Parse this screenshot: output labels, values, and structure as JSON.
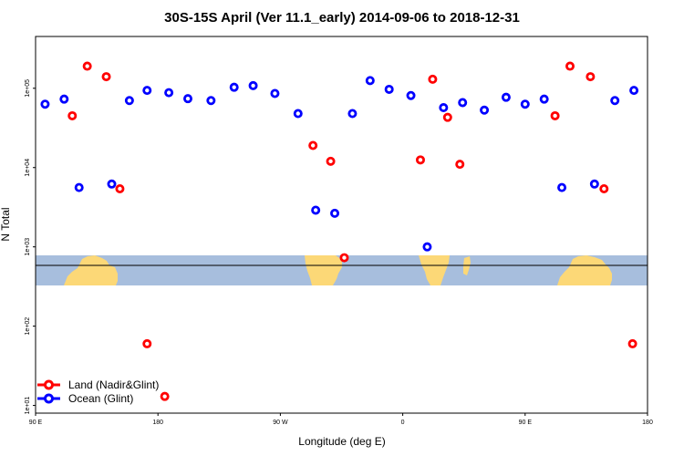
{
  "chart_data": {
    "type": "scatter",
    "title": "30S-15S April (Ver 11.1_early)   2014-09-06 to 2018-12-31",
    "xlabel": "Longitude (deg E)",
    "ylabel": "N Total",
    "xscale": "linear",
    "yscale": "log",
    "xlim": [
      90,
      540
    ],
    "ylim": [
      8,
      450000
    ],
    "x_ticks": [
      {
        "value": 90,
        "label": "90 E"
      },
      {
        "value": 180,
        "label": "180"
      },
      {
        "value": 270,
        "label": "90 W"
      },
      {
        "value": 360,
        "label": "0"
      },
      {
        "value": 450,
        "label": "90 E"
      },
      {
        "value": 540,
        "label": "180"
      }
    ],
    "y_ticks": [
      {
        "value": 10,
        "label": "1e+01"
      },
      {
        "value": 100,
        "label": "1e+02"
      },
      {
        "value": 1000,
        "label": "1e+03"
      },
      {
        "value": 10000,
        "label": "1e+04"
      },
      {
        "value": 100000,
        "label": "1e+05"
      }
    ],
    "grid": false,
    "legend_position": "bottom-left",
    "series": [
      {
        "name": "Land (Nadir&Glint)",
        "color": "#ff0000",
        "points": [
          {
            "x": 117,
            "y": 45000
          },
          {
            "x": 128,
            "y": 190000
          },
          {
            "x": 142,
            "y": 140000
          },
          {
            "x": 152,
            "y": 5400
          },
          {
            "x": 172,
            "y": 60
          },
          {
            "x": 185,
            "y": 13
          },
          {
            "x": 294,
            "y": 19000
          },
          {
            "x": 307,
            "y": 12000
          },
          {
            "x": 317,
            "y": 730
          },
          {
            "x": 373,
            "y": 12500
          },
          {
            "x": 382,
            "y": 130000
          },
          {
            "x": 393,
            "y": 43000
          },
          {
            "x": 402,
            "y": 11000
          },
          {
            "x": 472,
            "y": 45000
          },
          {
            "x": 483,
            "y": 190000
          },
          {
            "x": 498,
            "y": 140000
          },
          {
            "x": 508,
            "y": 5400
          },
          {
            "x": 529,
            "y": 60
          }
        ]
      },
      {
        "name": "Ocean (Glint)",
        "color": "#0000ff",
        "points": [
          {
            "x": 97,
            "y": 63000
          },
          {
            "x": 111,
            "y": 73000
          },
          {
            "x": 122,
            "y": 5600
          },
          {
            "x": 146,
            "y": 6200
          },
          {
            "x": 159,
            "y": 70000
          },
          {
            "x": 172,
            "y": 94000
          },
          {
            "x": 188,
            "y": 88000
          },
          {
            "x": 202,
            "y": 74000
          },
          {
            "x": 219,
            "y": 70000
          },
          {
            "x": 236,
            "y": 103000
          },
          {
            "x": 250,
            "y": 108000
          },
          {
            "x": 266,
            "y": 86000
          },
          {
            "x": 283,
            "y": 48000
          },
          {
            "x": 296,
            "y": 2900
          },
          {
            "x": 310,
            "y": 2650
          },
          {
            "x": 323,
            "y": 48000
          },
          {
            "x": 336,
            "y": 125000
          },
          {
            "x": 350,
            "y": 97000
          },
          {
            "x": 366,
            "y": 81000
          },
          {
            "x": 378,
            "y": 1000
          },
          {
            "x": 390,
            "y": 57000
          },
          {
            "x": 404,
            "y": 66000
          },
          {
            "x": 420,
            "y": 53000
          },
          {
            "x": 436,
            "y": 77000
          },
          {
            "x": 450,
            "y": 63000
          },
          {
            "x": 464,
            "y": 73000
          },
          {
            "x": 477,
            "y": 5600
          },
          {
            "x": 501,
            "y": 6200
          },
          {
            "x": 516,
            "y": 70000
          },
          {
            "x": 530,
            "y": 94000
          }
        ]
      }
    ]
  }
}
